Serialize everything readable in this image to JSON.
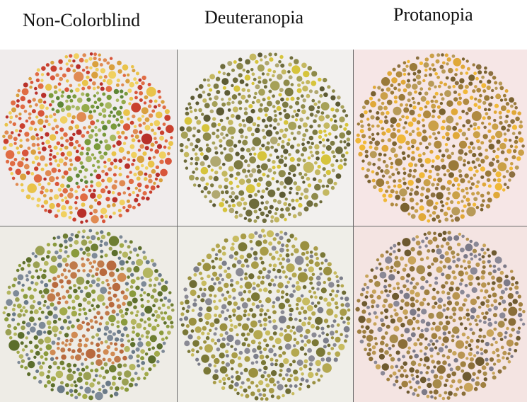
{
  "columns": [
    {
      "title": "Non-Colorblind"
    },
    {
      "title": "Deuteranopia"
    },
    {
      "title": "Protanopia"
    }
  ],
  "plates": [
    {
      "row": 0,
      "col": 0,
      "bg": "#f0ecec",
      "digit": "7",
      "digit_visible": true,
      "palette": [
        "#d8553a",
        "#c9402e",
        "#e08a52",
        "#b8302a",
        "#e9c34a",
        "#d9a03e",
        "#f0d060",
        "#e06c44"
      ],
      "figure_palette": [
        "#7a9a3a",
        "#94ab4a",
        "#5e8636",
        "#a8b860"
      ]
    },
    {
      "row": 0,
      "col": 1,
      "bg": "#f2f0ee",
      "digit": "",
      "digit_visible": false,
      "palette": [
        "#8e8a4a",
        "#a6a158",
        "#6e6c3c",
        "#c4b860",
        "#d6c43c",
        "#7c7a42",
        "#b0a870",
        "#5c5a34"
      ],
      "figure_palette": []
    },
    {
      "row": 0,
      "col": 2,
      "bg": "#f6e6e6",
      "digit": "",
      "digit_visible": false,
      "palette": [
        "#9a7a3a",
        "#b08a40",
        "#e0a838",
        "#caa048",
        "#7a6230",
        "#f0b838",
        "#8c7040",
        "#b89a58"
      ],
      "figure_palette": []
    },
    {
      "row": 1,
      "col": 0,
      "bg": "#eeece6",
      "digit": "2",
      "digit_visible": true,
      "palette": [
        "#8a9a3c",
        "#6e7e32",
        "#a2aa4a",
        "#7e8a98",
        "#b4b660",
        "#5c6e2c",
        "#9aa052",
        "#6a7a88"
      ],
      "figure_palette": [
        "#c07a4a",
        "#b86a3e",
        "#d08a52"
      ]
    },
    {
      "row": 1,
      "col": 1,
      "bg": "#efeee8",
      "digit": "",
      "digit_visible": false,
      "palette": [
        "#9a9040",
        "#b4a850",
        "#7a7836",
        "#8a8a94",
        "#c8bc60",
        "#6e6c34",
        "#a89c48",
        "#7c7e8a"
      ],
      "figure_palette": []
    },
    {
      "row": 1,
      "col": 2,
      "bg": "#f4e4e2",
      "digit": "",
      "digit_visible": false,
      "palette": [
        "#a08040",
        "#8a6e38",
        "#b89450",
        "#8a8896",
        "#c8a45a",
        "#6e5a30",
        "#a68a4a",
        "#7c7a88"
      ],
      "figure_palette": []
    }
  ]
}
